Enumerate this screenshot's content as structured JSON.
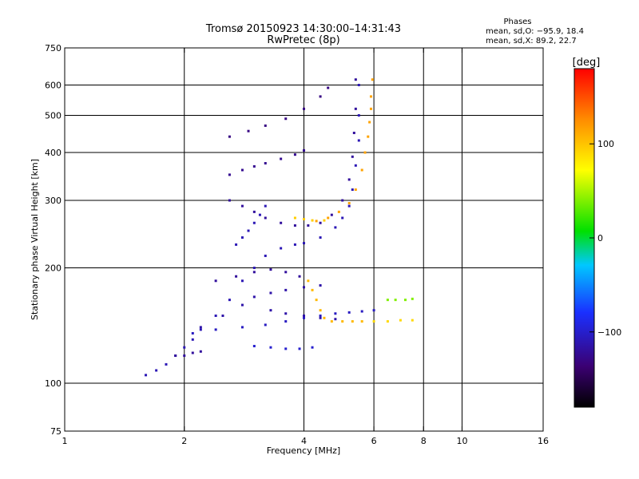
{
  "chart_data": {
    "type": "scatter",
    "title": "Tromsø 20150923 14:30:00–14:31:43",
    "subtitle": "RwPretec (8p)",
    "xlabel": "Frequency [MHz]",
    "ylabel": "Stationary phase Virtual Height [km]",
    "x_scale": "log",
    "y_scale": "log",
    "xlim": [
      1,
      16
    ],
    "ylim": [
      75,
      750
    ],
    "x_ticks": [
      "1",
      "2",
      "4",
      "6",
      "8",
      "10",
      "16"
    ],
    "y_ticks": [
      "75",
      "100",
      "200",
      "300",
      "400",
      "500",
      "600",
      "750"
    ],
    "x_gridlines": [
      2,
      4,
      6,
      8,
      10
    ],
    "y_gridlines": [
      100,
      200,
      300,
      400,
      500,
      600
    ],
    "grid": true,
    "stats_box": {
      "title": "Phases",
      "line1": "mean, sd,O: −95.9, 18.4",
      "line2": "mean, sd,X:  89.2, 22.7"
    },
    "colorbar": {
      "label": "[deg]",
      "range": [
        -180,
        180
      ],
      "ticks": [
        "100",
        "0",
        "−100"
      ],
      "tick_values": [
        100,
        0,
        -100
      ]
    },
    "series": [
      {
        "color_by": "phase",
        "traces": [
          {
            "phase": -110,
            "points": [
              [
                1.6,
                105
              ],
              [
                1.7,
                108
              ],
              [
                1.8,
                112
              ],
              [
                1.9,
                118
              ],
              [
                2.0,
                124
              ],
              [
                2.1,
                130
              ],
              [
                2.2,
                138
              ],
              [
                2.4,
                150
              ],
              [
                2.6,
                165
              ],
              [
                2.8,
                185
              ],
              [
                3.0,
                200
              ],
              [
                3.2,
                215
              ],
              [
                3.5,
                225
              ],
              [
                3.8,
                230
              ],
              [
                4.0,
                232
              ],
              [
                4.4,
                240
              ],
              [
                4.8,
                255
              ],
              [
                5.0,
                270
              ],
              [
                5.2,
                290
              ],
              [
                5.3,
                320
              ],
              [
                5.4,
                370
              ],
              [
                5.5,
                430
              ],
              [
                5.5,
                500
              ],
              [
                5.5,
                600
              ]
            ]
          },
          {
            "phase": -120,
            "points": [
              [
                2.6,
                300
              ],
              [
                2.8,
                290
              ],
              [
                3.0,
                280
              ],
              [
                3.2,
                270
              ],
              [
                3.5,
                262
              ],
              [
                3.8,
                258
              ],
              [
                4.1,
                258
              ],
              [
                4.4,
                262
              ],
              [
                4.7,
                275
              ],
              [
                5.0,
                300
              ],
              [
                5.2,
                340
              ],
              [
                5.3,
                390
              ],
              [
                5.35,
                450
              ],
              [
                5.4,
                520
              ],
              [
                5.4,
                620
              ]
            ]
          },
          {
            "phase": -105,
            "points": [
              [
                2.1,
                135
              ],
              [
                2.4,
                138
              ],
              [
                2.8,
                140
              ],
              [
                3.2,
                142
              ],
              [
                3.6,
                145
              ],
              [
                4.0,
                148
              ],
              [
                4.4,
                150
              ],
              [
                4.8,
                152
              ],
              [
                5.2,
                153
              ],
              [
                5.6,
                154
              ],
              [
                6.0,
                155
              ]
            ]
          },
          {
            "phase": -115,
            "points": [
              [
                2.2,
                140
              ],
              [
                2.5,
                150
              ],
              [
                2.8,
                160
              ],
              [
                3.0,
                168
              ],
              [
                3.3,
                172
              ],
              [
                3.6,
                175
              ],
              [
                4.0,
                178
              ],
              [
                4.4,
                180
              ]
            ]
          },
          {
            "phase": -120,
            "points": [
              [
                2.4,
                185
              ],
              [
                2.7,
                190
              ],
              [
                3.0,
                195
              ],
              [
                3.3,
                198
              ],
              [
                3.6,
                195
              ],
              [
                3.9,
                190
              ]
            ]
          },
          {
            "phase": -125,
            "points": [
              [
                2.6,
                350
              ],
              [
                2.8,
                360
              ],
              [
                3.0,
                368
              ],
              [
                3.2,
                375
              ],
              [
                3.5,
                385
              ],
              [
                3.8,
                395
              ],
              [
                4.0,
                405
              ]
            ]
          },
          {
            "phase": -130,
            "points": [
              [
                2.6,
                440
              ],
              [
                2.9,
                455
              ],
              [
                3.2,
                470
              ],
              [
                3.6,
                490
              ],
              [
                4.0,
                520
              ],
              [
                4.4,
                560
              ],
              [
                4.6,
                590
              ]
            ]
          },
          {
            "phase": -110,
            "points": [
              [
                2.7,
                230
              ],
              [
                2.8,
                240
              ],
              [
                2.9,
                250
              ],
              [
                3.0,
                262
              ],
              [
                3.1,
                275
              ],
              [
                3.2,
                290
              ]
            ]
          },
          {
            "phase": -100,
            "points": [
              [
                3.0,
                125
              ],
              [
                3.3,
                124
              ],
              [
                3.6,
                123
              ],
              [
                3.9,
                123
              ],
              [
                4.2,
                124
              ]
            ]
          },
          {
            "phase": -115,
            "points": [
              [
                3.3,
                155
              ],
              [
                3.6,
                152
              ],
              [
                4.0,
                150
              ],
              [
                4.4,
                148
              ],
              [
                4.8,
                147
              ]
            ]
          },
          {
            "phase": -120,
            "points": [
              [
                1.9,
                118
              ],
              [
                2.0,
                118
              ],
              [
                2.1,
                120
              ],
              [
                2.2,
                121
              ]
            ]
          },
          {
            "phase": 115,
            "points": [
              [
                4.3,
                265
              ],
              [
                4.6,
                270
              ],
              [
                4.9,
                280
              ],
              [
                5.2,
                295
              ],
              [
                5.4,
                320
              ],
              [
                5.6,
                360
              ],
              [
                5.7,
                400
              ],
              [
                5.8,
                440
              ],
              [
                5.85,
                480
              ],
              [
                5.9,
                520
              ],
              [
                5.9,
                560
              ],
              [
                5.95,
                620
              ]
            ]
          },
          {
            "phase": 105,
            "points": [
              [
                4.1,
                185
              ],
              [
                4.2,
                175
              ],
              [
                4.3,
                165
              ],
              [
                4.4,
                155
              ],
              [
                4.5,
                148
              ],
              [
                4.7,
                145
              ],
              [
                5.0,
                145
              ],
              [
                5.3,
                145
              ],
              [
                5.6,
                145
              ]
            ]
          },
          {
            "phase": 95,
            "points": [
              [
                3.8,
                270
              ],
              [
                4.0,
                268
              ],
              [
                4.2,
                266
              ],
              [
                4.5,
                266
              ]
            ]
          },
          {
            "phase": 90,
            "points": [
              [
                6.0,
                145
              ],
              [
                6.5,
                145
              ],
              [
                7.0,
                146
              ],
              [
                7.5,
                146
              ]
            ]
          },
          {
            "phase": 40,
            "points": [
              [
                6.5,
                165
              ],
              [
                6.8,
                165
              ],
              [
                7.2,
                165
              ],
              [
                7.5,
                166
              ]
            ]
          }
        ]
      }
    ]
  }
}
